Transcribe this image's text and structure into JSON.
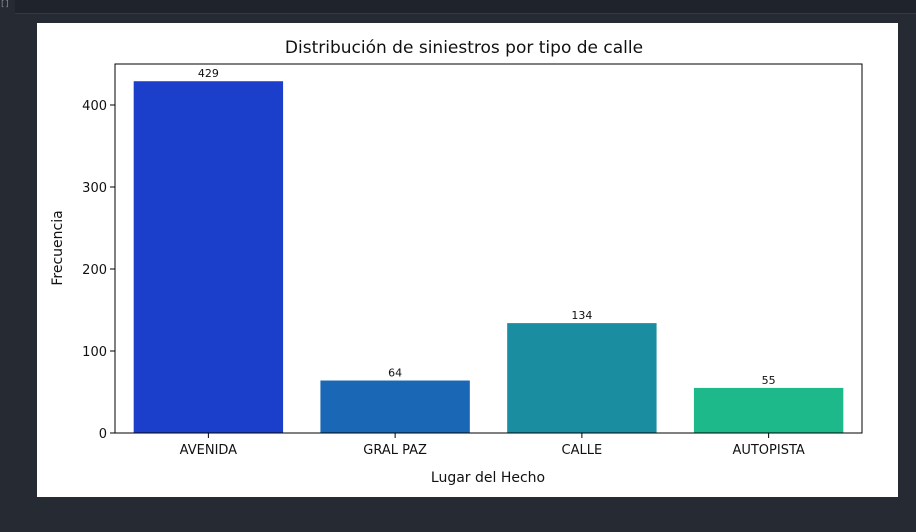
{
  "cell": {
    "marker": "[]"
  },
  "chart_data": {
    "type": "bar",
    "title": "Distribución de siniestros por tipo de calle",
    "xlabel": "Lugar del Hecho",
    "ylabel": "Frecuencia",
    "categories": [
      "AVENIDA",
      "GRAL PAZ",
      "CALLE",
      "AUTOPISTA"
    ],
    "values": [
      429,
      64,
      134,
      55
    ],
    "bar_labels": [
      "429",
      "64",
      "134",
      "55"
    ],
    "colors": [
      "#1c3fcb",
      "#1a68b5",
      "#1a8ea0",
      "#1db98b"
    ],
    "ylim": [
      0,
      450
    ],
    "yticks": [
      0,
      100,
      200,
      300,
      400
    ],
    "grid": false,
    "legend": "none"
  }
}
